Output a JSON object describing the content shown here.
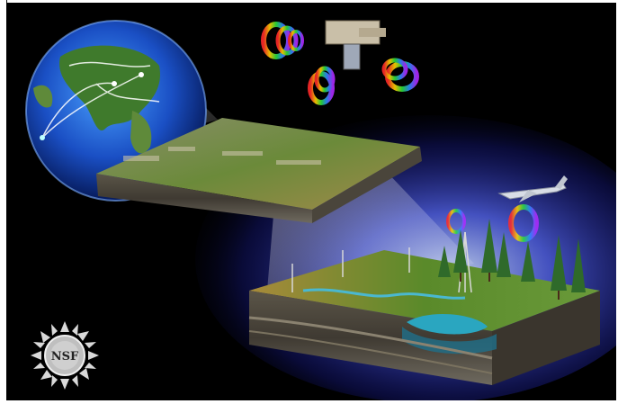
{
  "image": {
    "description_free": true
  },
  "logo": {
    "text": "NSF"
  },
  "colors": {
    "background": "#000000",
    "glow": "#3a4cff",
    "ocean": "#1f5fc8",
    "land": "#3f7a2c",
    "soil": "#6b5a45",
    "water": "#2aa6c0"
  }
}
